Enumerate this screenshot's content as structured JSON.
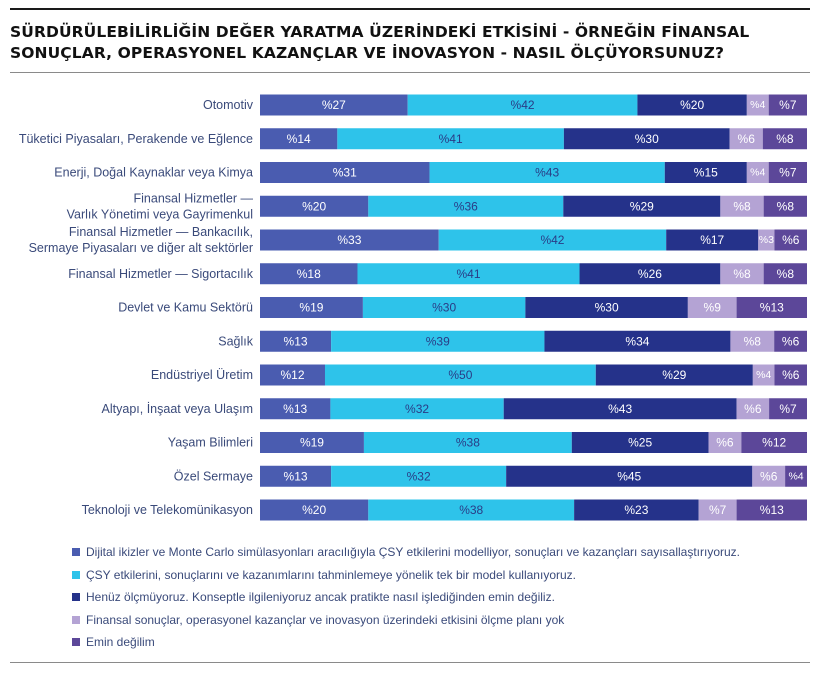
{
  "title": "SÜRDÜRÜLEBİLİRLİĞİN DEĞER YARATMA ÜZERİNDEKİ ETKİSİNİ - ÖRNEĞİN FİNANSAL SONUÇLAR, OPERASYONEL KAZANÇLAR VE İNOVASYON - NASIL ÖLÇÜYORSUNUZ?",
  "colors": {
    "s1": "#4a5cb0",
    "s2": "#2ec3ea",
    "s3": "#25328a",
    "s4": "#b4a3d4",
    "s5": "#5c4799",
    "category_text": "#3a4a7a"
  },
  "chart_data": {
    "type": "bar",
    "orientation": "horizontal",
    "stacked": true,
    "value_prefix": "%",
    "categories": [
      [
        "Otomotiv"
      ],
      [
        "Tüketici Piyasaları, Perakende ve Eğlence"
      ],
      [
        "Enerji, Doğal Kaynaklar veya Kimya"
      ],
      [
        "Finansal Hizmetler —",
        "Varlık Yönetimi veya Gayrimenkul"
      ],
      [
        "Finansal Hizmetler — Bankacılık,",
        "Sermaye Piyasaları ve diğer alt sektörler"
      ],
      [
        "Finansal Hizmetler — Sigortacılık"
      ],
      [
        "Devlet ve Kamu Sektörü"
      ],
      [
        "Sağlık"
      ],
      [
        "Endüstriyel Üretim"
      ],
      [
        "Altyapı, İnşaat veya Ulaşım"
      ],
      [
        "Yaşam Bilimleri"
      ],
      [
        "Özel Sermaye"
      ],
      [
        "Teknoloji ve Telekomünikasyon"
      ]
    ],
    "series": [
      {
        "name": "Dijital ikizler ve Monte Carlo simülasyonları aracılığıyla ÇSY etkilerini modelliyor, sonuçları ve kazançları sayısallaştırıyoruz.",
        "values": [
          27,
          14,
          31,
          20,
          33,
          18,
          19,
          13,
          12,
          13,
          19,
          13,
          20
        ]
      },
      {
        "name": "ÇSY etkilerini, sonuçlarını ve kazanımlarını tahminlemeye yönelik tek bir model kullanıyoruz.",
        "values": [
          42,
          41,
          43,
          36,
          42,
          41,
          30,
          39,
          50,
          32,
          38,
          32,
          38
        ]
      },
      {
        "name": "Henüz ölçmüyoruz. Konseptle ilgileniyoruz ancak pratikte nasıl işlediğinden emin değiliz.",
        "values": [
          20,
          30,
          15,
          29,
          17,
          26,
          30,
          34,
          29,
          43,
          25,
          45,
          23
        ]
      },
      {
        "name": "Finansal sonuçlar, operasyonel kazançlar ve inovasyon üzerindeki etkisini ölçme planı yok",
        "values": [
          4,
          6,
          4,
          8,
          3,
          8,
          9,
          8,
          4,
          6,
          6,
          6,
          7
        ]
      },
      {
        "name": "Emin değilim",
        "values": [
          7,
          8,
          7,
          8,
          6,
          8,
          13,
          6,
          6,
          7,
          12,
          4,
          13
        ]
      }
    ],
    "legend_position": "bottom-left",
    "grid": false
  }
}
